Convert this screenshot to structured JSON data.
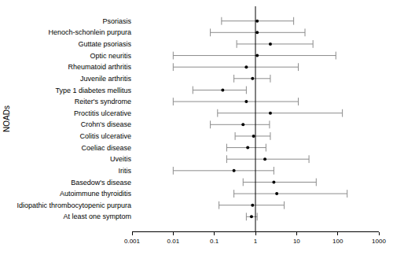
{
  "chart_data": {
    "type": "forest",
    "y_label": "NOADs",
    "categories": [
      "Psoriasis",
      "Henoch-schonlein purpura",
      "Guttate psoriasis",
      "Optic neuritis",
      "Rheumatoid arthritis",
      "Juvenile arthritis",
      "Type 1 diabetes mellitus",
      "Reiter's syndrome",
      "Proctitis ulcerative",
      "Crohn's disease",
      "Colitis ulcerative",
      "Coeliac disease",
      "Uveitis",
      "Iritis",
      "Basedow's disease",
      "Autoimmune thyroiditis",
      "Idiopathic thrombocytopenic purpura",
      "At least one symptom"
    ],
    "values": [
      1.1,
      1.1,
      2.3,
      1.1,
      0.6,
      0.85,
      0.16,
      0.6,
      2.3,
      0.5,
      0.9,
      0.65,
      1.7,
      0.3,
      2.8,
      3.3,
      0.85,
      0.8
    ],
    "ci_low": [
      0.15,
      0.08,
      0.35,
      0.01,
      0.01,
      0.3,
      0.03,
      0.01,
      0.12,
      0.08,
      0.32,
      0.2,
      0.2,
      0.01,
      0.5,
      0.3,
      0.13,
      0.6
    ],
    "ci_high": [
      8.5,
      16,
      25,
      90,
      11,
      2.3,
      0.6,
      11,
      130,
      2.2,
      2.3,
      1.8,
      20,
      2.8,
      30,
      170,
      5,
      1.1
    ],
    "reference_line": 1,
    "color": "#000000",
    "xlim": [
      0.001,
      1000
    ],
    "xticks": [
      0.001,
      0.01,
      0.1,
      1,
      10,
      100,
      1000
    ],
    "log": "x",
    "grid": false
  }
}
